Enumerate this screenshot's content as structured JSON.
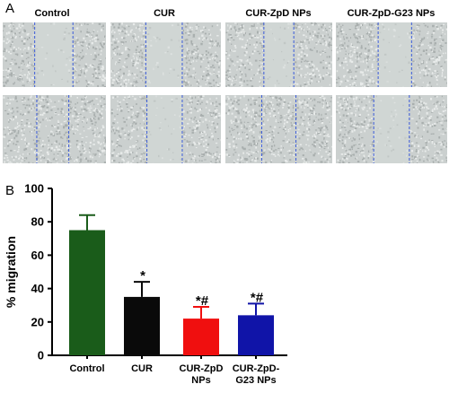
{
  "panel_a": {
    "letter": "A",
    "columns": [
      "Control",
      "CUR",
      "CUR-ZpD NPs",
      "CUR-ZpD-G23 NPs"
    ]
  },
  "panel_b": {
    "letter": "B"
  },
  "colors": {
    "Control": "#1a5c1a",
    "CUR": "#0a0a0a",
    "CUR-ZpD NPs": "#f00f0f",
    "CUR-ZpD-G23 NPs": "#1014a8",
    "scratch_line": "#3b5bd9"
  },
  "chart_data": {
    "type": "bar",
    "categories": [
      "Control",
      "CUR",
      "CUR-ZpD NPs",
      "CUR-ZpD-G23 NPs"
    ],
    "category_label_lines": [
      [
        "Control"
      ],
      [
        "CUR"
      ],
      [
        "CUR-ZpD",
        "NPs"
      ],
      [
        "CUR-ZpD-",
        "G23 NPs"
      ]
    ],
    "values": [
      75,
      35,
      22,
      24
    ],
    "error_upper": [
      84,
      44,
      29,
      31
    ],
    "significance": [
      "",
      "*",
      "*#",
      "*#"
    ],
    "ylabel": "% migration",
    "xlabel": "",
    "ylim": [
      0,
      100
    ],
    "yticks": [
      0,
      20,
      40,
      60,
      80,
      100
    ],
    "grid": false,
    "legend": "none"
  }
}
